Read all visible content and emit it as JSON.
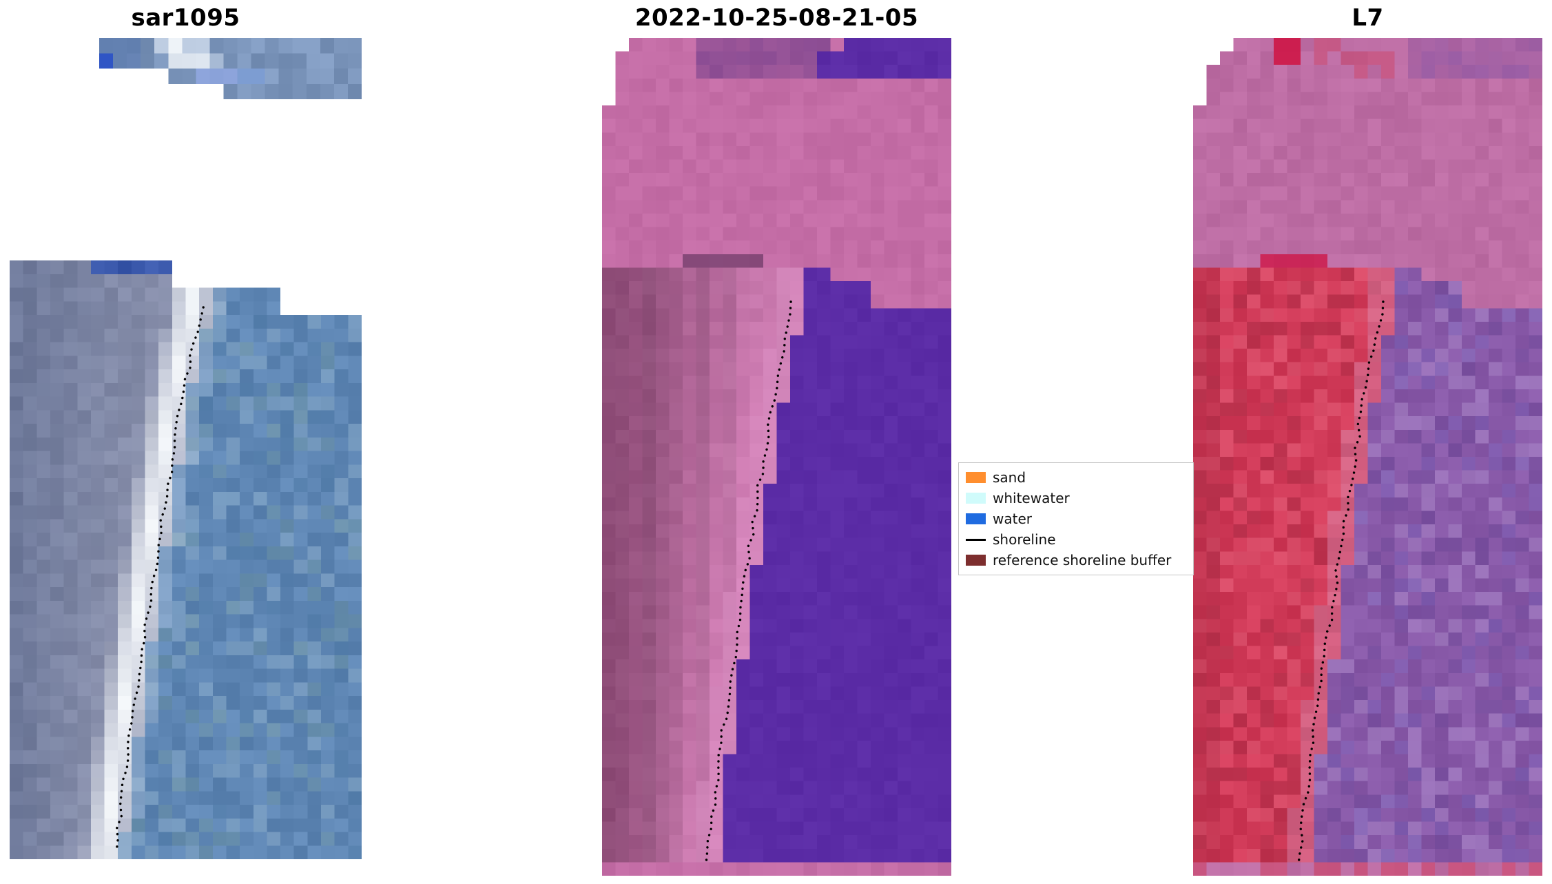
{
  "figure": {
    "background": "#ffffff",
    "palette": {
      "sar": {
        "strip_base": "#7b95bb",
        "strip_mid": "#5a79ae",
        "strip_blue": "#2f55c5",
        "strip_white": "#eef3f8",
        "strip_periwinkle": "#8fa6e0",
        "strip_lightblue": "#7a9cd8",
        "top_darkblue": "#3a58ab",
        "water": "#5e86b4",
        "water_light": "#82a5c6",
        "water_dark": "#4e79a6",
        "water_teal": "#6c93a4",
        "land": "#8a91ad",
        "land_dark": "#6f7a9b",
        "band_white": "#f5f8fb",
        "band_light": "#cfdcec"
      },
      "cls": {
        "pink": "#c46da6",
        "pink_light": "#cd7db2",
        "mauve_dark": "#8a4a74",
        "purple": "#5b2ca6",
        "patch_dark": "#74408c",
        "stripe_dark": "#6b3a66",
        "shore_strip": "#d98fc2"
      },
      "l7": {
        "pink": "#bd6da4",
        "purple_top": "#8f58a5",
        "crimson": "#cf1040",
        "red": "#d03a58",
        "red_dark": "#ad2c46",
        "red_bright": "#e5607a",
        "water": "#8859a8",
        "water_light": "#a783c6",
        "water_dark": "#6f4898",
        "water_blue": "#7a5fb5",
        "pink_strip": "#d883a8"
      }
    }
  },
  "chart_data": {
    "type": "heatmap",
    "description": "Three-panel shoreline-mapping figure: SAR image, classified optical image, and Landsat-7 image, each with a dotted detected shoreline overlay",
    "panels": [
      {
        "title": "sar1095"
      },
      {
        "title": "2022-10-25-08-21-05"
      },
      {
        "title": "L7"
      }
    ],
    "legend": {
      "position": "center-right",
      "entries": [
        {
          "label": "sand",
          "color": "#ff8e2e",
          "swatch": "patch"
        },
        {
          "label": "whitewater",
          "color": "#d0fbfb",
          "swatch": "patch"
        },
        {
          "label": "water",
          "color": "#1f6be0",
          "swatch": "patch"
        },
        {
          "label": "shoreline",
          "color": "#000000",
          "swatch": "line"
        },
        {
          "label": "reference shoreline buffer",
          "color": "#7d2e2e",
          "swatch": "patch"
        }
      ]
    }
  }
}
